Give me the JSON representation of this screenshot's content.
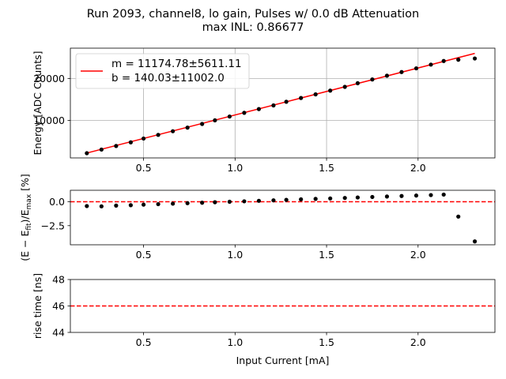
{
  "figure": {
    "title_line1": "Run 2093, channel8, lo gain, Pulses w/ 0.0 dB Attenuation",
    "title_line2": "max INL: 0.86677"
  },
  "chart_data": [
    {
      "type": "scatter",
      "panel": "energy",
      "ylabel": "Energy [ADC Counts]",
      "xlim": [
        0.1,
        2.42
      ],
      "ylim": [
        1100,
        27200
      ],
      "xticks": [
        0.5,
        1.0,
        1.5,
        2.0
      ],
      "xtick_labels": [
        "0.5",
        "1.0",
        "1.5",
        "2.0"
      ],
      "yticks": [
        10000,
        20000
      ],
      "ytick_labels": [
        "10000",
        "20000"
      ],
      "grid": true,
      "legend_position": "top-left",
      "legend": [
        "m = 11174.78±5611.11",
        "b = 140.03±11002.0"
      ],
      "fit": {
        "slope": 11174.78,
        "intercept": 140.03,
        "x_range": [
          0.19,
          2.31
        ],
        "color": "#ff0000"
      },
      "series": [
        {
          "x": [
            0.19,
            0.27,
            0.35,
            0.43,
            0.5,
            0.58,
            0.66,
            0.74,
            0.82,
            0.89,
            0.97,
            1.05,
            1.13,
            1.21,
            1.28,
            1.36,
            1.44,
            1.52,
            1.6,
            1.67,
            1.75,
            1.83,
            1.91,
            1.99,
            2.07,
            2.14,
            2.22,
            2.31
          ],
          "y": [
            2220,
            3080,
            3940,
            4810,
            5710,
            6580,
            7450,
            8310,
            9170,
            10040,
            10950,
            11830,
            12720,
            13590,
            14460,
            15350,
            16220,
            17110,
            18000,
            18870,
            19760,
            20650,
            21520,
            22400,
            23290,
            24150,
            24450,
            24750
          ],
          "color": "#000000"
        }
      ]
    },
    {
      "type": "scatter",
      "panel": "residual",
      "ylabel": "(E − E_fit)/E_max [%]",
      "xlim": [
        0.1,
        2.42
      ],
      "ylim": [
        -4.5,
        1.2
      ],
      "xticks": [
        0.5,
        1.0,
        1.5,
        2.0
      ],
      "xtick_labels": [
        "0.5",
        "1.0",
        "1.5",
        "2.0"
      ],
      "yticks": [
        0.0,
        -2.5
      ],
      "ytick_labels": [
        "0.0",
        "−2.5"
      ],
      "grid": false,
      "reference_line": {
        "y": 0.0,
        "color": "#ff0000",
        "style": "dashed"
      },
      "series": [
        {
          "x": [
            0.19,
            0.27,
            0.35,
            0.43,
            0.5,
            0.58,
            0.66,
            0.74,
            0.82,
            0.89,
            0.97,
            1.05,
            1.13,
            1.21,
            1.28,
            1.36,
            1.44,
            1.52,
            1.6,
            1.67,
            1.75,
            1.83,
            1.91,
            1.99,
            2.07,
            2.14,
            2.22,
            2.31
          ],
          "y": [
            -0.45,
            -0.48,
            -0.4,
            -0.36,
            -0.3,
            -0.25,
            -0.2,
            -0.15,
            -0.1,
            -0.05,
            0.0,
            0.05,
            0.1,
            0.15,
            0.2,
            0.25,
            0.3,
            0.35,
            0.4,
            0.45,
            0.5,
            0.55,
            0.6,
            0.65,
            0.7,
            0.75,
            -1.55,
            -4.15
          ],
          "color": "#000000"
        }
      ]
    },
    {
      "type": "line",
      "panel": "rise_time",
      "xlabel": "Input Current [mA]",
      "ylabel": "rise time [ns]",
      "xlim": [
        0.1,
        2.42
      ],
      "ylim": [
        44,
        48
      ],
      "xticks": [
        0.5,
        1.0,
        1.5,
        2.0
      ],
      "xtick_labels": [
        "0.5",
        "1.0",
        "1.5",
        "2.0"
      ],
      "yticks": [
        44,
        46,
        48
      ],
      "ytick_labels": [
        "44",
        "46",
        "48"
      ],
      "grid": false,
      "reference_line": {
        "y": 46,
        "color": "#ff0000",
        "style": "dashed"
      },
      "series": []
    }
  ]
}
